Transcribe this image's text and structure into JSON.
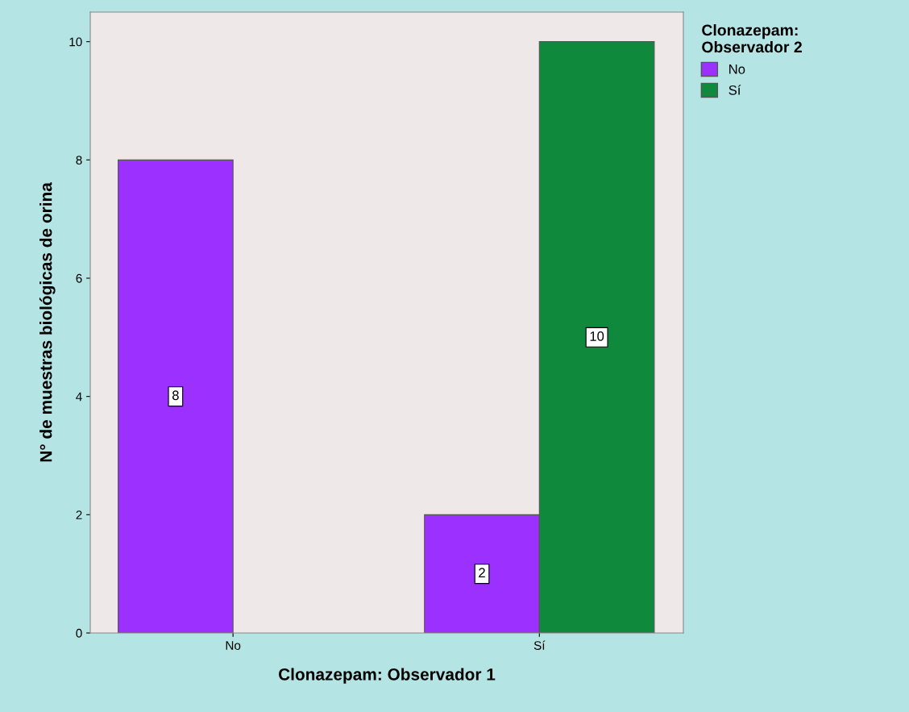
{
  "chart_data": {
    "type": "bar",
    "xlabel": "Clonazepam: Observador 1",
    "ylabel": "N° de muestras biológicas de orina",
    "legend_title": "Clonazepam:\nObservador 2",
    "categories": [
      "No",
      "Sí"
    ],
    "series": [
      {
        "name": "No",
        "color": "#9b30ff",
        "values": [
          8,
          2
        ]
      },
      {
        "name": "Sí",
        "color": "#0f8a3c",
        "values": [
          null,
          10
        ]
      }
    ],
    "ylim": [
      0,
      10.5
    ],
    "yticks": [
      0,
      2,
      4,
      6,
      8,
      10
    ],
    "grid": false,
    "legend": "top right",
    "data_labels": true
  }
}
